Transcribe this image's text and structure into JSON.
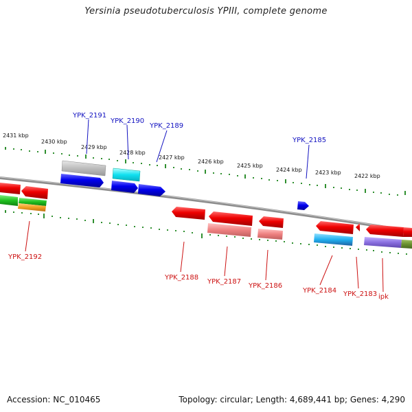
{
  "title": "Yersinia pseudotuberculosis YPIII, complete genome",
  "footer": {
    "accession": "Accession: NC_010465",
    "summary": "Topology: circular; Length: 4,689,441 bp; Genes: 4,290"
  },
  "colors": {
    "backbone": "#8c8c8c",
    "tick": "#2f8f2f",
    "forward_label": "#1010c0",
    "reverse_label": "#cc1010"
  },
  "scale_labels": [
    "2431 kbp",
    "2430 kbp",
    "2429 kbp",
    "2428 kbp",
    "2427 kbp",
    "2426 kbp",
    "2425 kbp",
    "2424 kbp",
    "2423 kbp",
    "2422 kbp"
  ],
  "forward_gene_labels": [
    "YPK_2191",
    "YPK_2190",
    "YPK_2189",
    "YPK_2185"
  ],
  "reverse_gene_labels": [
    "YPK_2192",
    "YPK_2188",
    "YPK_2187",
    "YPK_2186",
    "YPK_2184",
    "YPK_2183",
    "ipk"
  ]
}
